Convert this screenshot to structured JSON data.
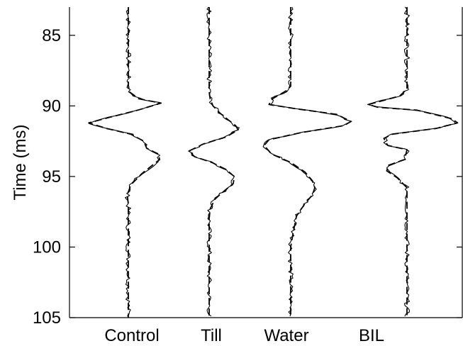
{
  "chart_data": {
    "type": "line",
    "title": "",
    "xlabel": "",
    "ylabel": "Time (ms)",
    "ylim": [
      83,
      105
    ],
    "y_inverted": true,
    "yticks": [
      85,
      90,
      95,
      100,
      105
    ],
    "grid": false,
    "legend": "none",
    "line_color": "#000000",
    "line_styles": [
      "solid",
      "dashed"
    ],
    "categories": [
      "Control",
      "Till",
      "Water",
      "BIL"
    ],
    "series": [
      {
        "category": "Control",
        "points": [
          [
            0,
            83
          ],
          [
            0,
            88.5
          ],
          [
            0.02,
            89
          ],
          [
            0.22,
            89.5
          ],
          [
            0.68,
            89.8
          ],
          [
            0.2,
            90.3
          ],
          [
            -0.38,
            90.8
          ],
          [
            -0.82,
            91.2
          ],
          [
            -0.45,
            91.6
          ],
          [
            0.05,
            92
          ],
          [
            0.32,
            92.5
          ],
          [
            0.38,
            93
          ],
          [
            0.62,
            93.4
          ],
          [
            0.65,
            93.8
          ],
          [
            0.5,
            94.2
          ],
          [
            0.28,
            94.8
          ],
          [
            0.05,
            95.6
          ],
          [
            -0.02,
            96.3
          ],
          [
            0,
            97
          ],
          [
            0,
            105
          ]
        ]
      },
      {
        "category": "Till",
        "points": [
          [
            0,
            83
          ],
          [
            0,
            89
          ],
          [
            0.02,
            89.5
          ],
          [
            0.08,
            90
          ],
          [
            0.22,
            90.5
          ],
          [
            0.4,
            91
          ],
          [
            0.55,
            91.4
          ],
          [
            0.6,
            91.7
          ],
          [
            0.35,
            92.2
          ],
          [
            -0.12,
            92.7
          ],
          [
            -0.42,
            93.2
          ],
          [
            -0.3,
            93.6
          ],
          [
            0.05,
            94
          ],
          [
            0.35,
            94.5
          ],
          [
            0.52,
            95
          ],
          [
            0.5,
            95.5
          ],
          [
            0.32,
            96
          ],
          [
            0.12,
            96.6
          ],
          [
            0.02,
            97.3
          ],
          [
            0,
            98
          ],
          [
            0,
            105
          ]
        ]
      },
      {
        "category": "Water",
        "points": [
          [
            0,
            83
          ],
          [
            0,
            88.6
          ],
          [
            -0.08,
            88.9
          ],
          [
            -0.38,
            89.5
          ],
          [
            -0.45,
            89.9
          ],
          [
            0.1,
            90.2
          ],
          [
            0.95,
            90.6
          ],
          [
            1.25,
            91.1
          ],
          [
            1.1,
            91.4
          ],
          [
            0.2,
            91.9
          ],
          [
            -0.45,
            92.4
          ],
          [
            -0.55,
            92.8
          ],
          [
            -0.4,
            93.4
          ],
          [
            0,
            94
          ],
          [
            0.3,
            94.7
          ],
          [
            0.45,
            95.3
          ],
          [
            0.5,
            95.8
          ],
          [
            0.45,
            96.3
          ],
          [
            0.28,
            97
          ],
          [
            0.12,
            97.8
          ],
          [
            0.05,
            99
          ],
          [
            0,
            100
          ],
          [
            0,
            105
          ]
        ]
      },
      {
        "category": "BIL",
        "points": [
          [
            0,
            83
          ],
          [
            0,
            88.8
          ],
          [
            -0.15,
            89.3
          ],
          [
            -0.8,
            89.9
          ],
          [
            -0.6,
            90.1
          ],
          [
            0.2,
            90.3
          ],
          [
            0.92,
            90.9
          ],
          [
            1.05,
            91.2
          ],
          [
            0.6,
            91.6
          ],
          [
            -0.3,
            92
          ],
          [
            -0.48,
            92.3
          ],
          [
            -0.4,
            92.8
          ],
          [
            0,
            93.1
          ],
          [
            -0.05,
            93.8
          ],
          [
            -0.38,
            94.2
          ],
          [
            -0.42,
            94.6
          ],
          [
            -0.2,
            95.1
          ],
          [
            0,
            95.8
          ],
          [
            0,
            105
          ]
        ]
      }
    ]
  }
}
